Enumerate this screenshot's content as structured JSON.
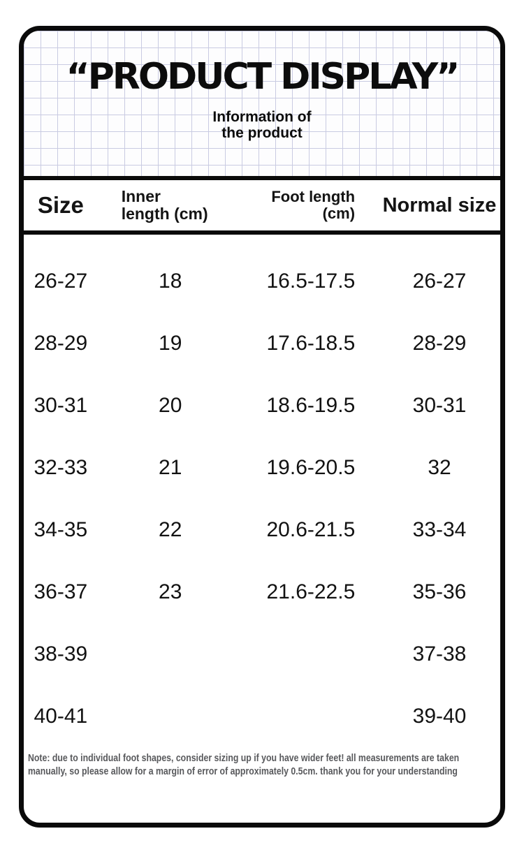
{
  "theme": {
    "grid_line_color": "#c9cbe2",
    "border_color": "#0a0a0a",
    "note_text_color": "#58595c",
    "background_color": "#ffffff"
  },
  "header": {
    "title": "“PRODUCT DISPLAY”",
    "subtitle_line1": "Information of",
    "subtitle_line2": "the product"
  },
  "table": {
    "columns": {
      "size": "Size",
      "inner_length_line1": "Inner",
      "inner_length_line2": "length (cm)",
      "foot_length_line1": "Foot length",
      "foot_length_line2": "(cm)",
      "normal_size": "Normal size"
    },
    "rows": [
      [
        "26-27",
        "18",
        "16.5-17.5",
        "26-27"
      ],
      [
        "28-29",
        "19",
        "17.6-18.5",
        "28-29"
      ],
      [
        "30-31",
        "20",
        "18.6-19.5",
        "30-31"
      ],
      [
        "32-33",
        "21",
        "19.6-20.5",
        "32"
      ],
      [
        "34-35",
        "22",
        "20.6-21.5",
        "33-34"
      ],
      [
        "36-37",
        "23",
        "21.6-22.5",
        "35-36"
      ],
      [
        "38-39",
        "",
        "",
        "37-38"
      ],
      [
        "40-41",
        "",
        "",
        "39-40"
      ]
    ]
  },
  "note": {
    "lines": [
      "Note: due to individual foot shapes, consider sizing up if you have wider feet! all measurements are taken",
      "manually, so please allow for a margin of error of approximately 0.5cm. thank you for your understanding"
    ]
  }
}
